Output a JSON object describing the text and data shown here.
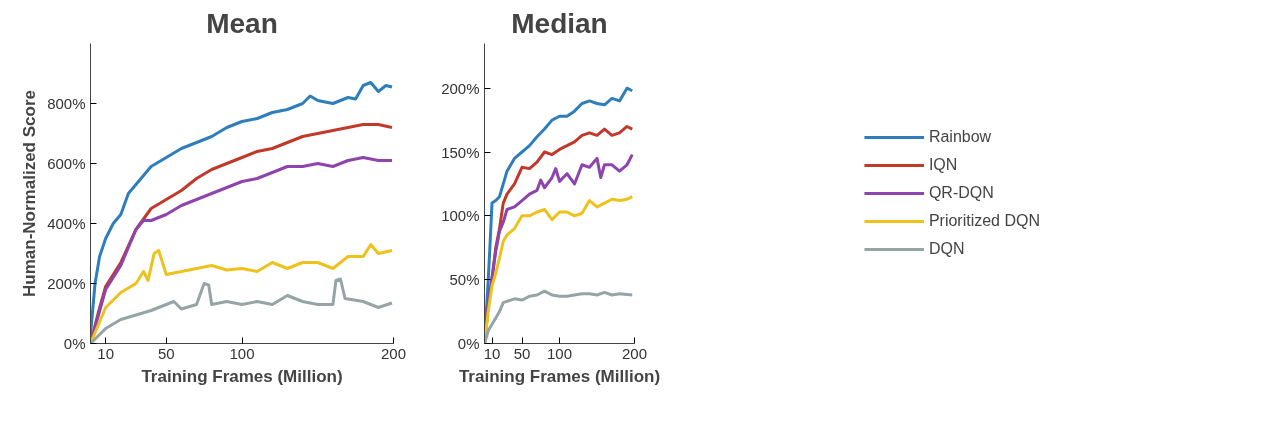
{
  "chart_data": [
    {
      "type": "line",
      "title": "Mean",
      "xlabel": "Training Frames (Million)",
      "ylabel": "Human-Normalized Score",
      "xlim": [
        0,
        200
      ],
      "xticks": [
        10,
        50,
        100,
        200
      ],
      "ylim": [
        0,
        1000
      ],
      "yticks": [
        {
          "value": 0,
          "label": "0%"
        },
        {
          "value": 200,
          "label": "200%"
        },
        {
          "value": 400,
          "label": "400%"
        },
        {
          "value": 600,
          "label": "600%"
        },
        {
          "value": 800,
          "label": "800%"
        }
      ],
      "grid": false,
      "legend": false,
      "series": [
        {
          "color": "#2f7ebc",
          "x": [
            0,
            3,
            6,
            10,
            15,
            20,
            25,
            30,
            40,
            50,
            60,
            70,
            80,
            90,
            100,
            110,
            120,
            130,
            140,
            145,
            150,
            160,
            170,
            175,
            180,
            185,
            190,
            195,
            199
          ],
          "values": [
            30,
            200,
            290,
            350,
            400,
            430,
            500,
            530,
            590,
            620,
            650,
            670,
            690,
            720,
            740,
            750,
            770,
            780,
            800,
            825,
            810,
            800,
            820,
            815,
            860,
            870,
            840,
            860,
            855
          ]
        },
        {
          "color": "#c0392b",
          "x": [
            0,
            5,
            10,
            20,
            30,
            40,
            50,
            60,
            70,
            80,
            90,
            100,
            110,
            120,
            130,
            140,
            150,
            160,
            170,
            180,
            190,
            199
          ],
          "values": [
            0,
            100,
            190,
            270,
            380,
            450,
            480,
            510,
            550,
            580,
            600,
            620,
            640,
            650,
            670,
            690,
            700,
            710,
            720,
            730,
            730,
            720
          ]
        },
        {
          "color": "#8e44ad",
          "x": [
            0,
            5,
            10,
            20,
            30,
            35,
            40,
            50,
            60,
            70,
            80,
            90,
            100,
            110,
            120,
            130,
            140,
            150,
            160,
            170,
            180,
            190,
            199
          ],
          "values": [
            0,
            90,
            180,
            260,
            380,
            410,
            410,
            430,
            460,
            480,
            500,
            520,
            540,
            550,
            570,
            590,
            590,
            600,
            590,
            610,
            620,
            610,
            610
          ]
        },
        {
          "color": "#eec21c",
          "x": [
            0,
            5,
            10,
            20,
            30,
            35,
            38,
            42,
            45,
            50,
            60,
            70,
            80,
            90,
            100,
            110,
            120,
            130,
            140,
            150,
            160,
            170,
            180,
            185,
            190,
            199
          ],
          "values": [
            0,
            60,
            120,
            170,
            200,
            240,
            210,
            300,
            310,
            230,
            240,
            250,
            260,
            245,
            250,
            240,
            270,
            250,
            270,
            270,
            250,
            290,
            290,
            330,
            300,
            310
          ]
        },
        {
          "color": "#95a5a6",
          "x": [
            0,
            10,
            20,
            30,
            40,
            50,
            55,
            60,
            70,
            75,
            78,
            80,
            90,
            100,
            110,
            120,
            130,
            140,
            150,
            160,
            162,
            165,
            168,
            180,
            190,
            199
          ],
          "values": [
            0,
            50,
            80,
            95,
            110,
            130,
            140,
            115,
            130,
            200,
            195,
            130,
            140,
            130,
            140,
            130,
            160,
            140,
            130,
            130,
            210,
            215,
            150,
            140,
            120,
            135
          ]
        }
      ]
    },
    {
      "type": "line",
      "title": "Median",
      "xlabel": "Training Frames (Million)",
      "xlim": [
        0,
        200
      ],
      "xticks": [
        10,
        50,
        100,
        200
      ],
      "ylim": [
        0,
        235
      ],
      "yticks": [
        {
          "value": 0,
          "label": "0%"
        },
        {
          "value": 50,
          "label": "50%"
        },
        {
          "value": 100,
          "label": "100%"
        },
        {
          "value": 150,
          "label": "150%"
        },
        {
          "value": 200,
          "label": "200%"
        }
      ],
      "grid": false,
      "legend": "right",
      "series": [
        {
          "name": "Rainbow",
          "color": "#2f7ebc",
          "x": [
            1,
            5,
            8,
            10,
            15,
            20,
            25,
            30,
            40,
            50,
            60,
            70,
            80,
            90,
            100,
            110,
            120,
            130,
            140,
            150,
            160,
            170,
            180,
            190,
            197
          ],
          "values": [
            10,
            50,
            85,
            110,
            112,
            115,
            125,
            135,
            145,
            150,
            155,
            162,
            168,
            175,
            178,
            178,
            182,
            188,
            190,
            188,
            187,
            192,
            190,
            200,
            198
          ]
        },
        {
          "name": "IQN",
          "color": "#c0392b",
          "x": [
            0,
            5,
            10,
            15,
            20,
            25,
            30,
            40,
            50,
            60,
            70,
            80,
            90,
            100,
            110,
            120,
            130,
            140,
            150,
            160,
            170,
            180,
            190,
            197
          ],
          "values": [
            0,
            30,
            50,
            75,
            90,
            110,
            117,
            125,
            138,
            137,
            142,
            150,
            148,
            152,
            155,
            158,
            163,
            165,
            163,
            168,
            163,
            165,
            170,
            168
          ]
        },
        {
          "name": "QR-DQN",
          "color": "#8e44ad",
          "x": [
            0,
            5,
            10,
            15,
            20,
            25,
            30,
            40,
            50,
            60,
            70,
            75,
            80,
            90,
            95,
            100,
            110,
            120,
            130,
            140,
            150,
            155,
            160,
            170,
            180,
            190,
            197
          ],
          "values": [
            0,
            30,
            52,
            72,
            88,
            95,
            105,
            107,
            112,
            117,
            120,
            128,
            122,
            130,
            137,
            127,
            133,
            125,
            140,
            138,
            145,
            130,
            140,
            140,
            135,
            140,
            148
          ]
        },
        {
          "name": "Prioritized DQN",
          "color": "#eec21c",
          "x": [
            0,
            5,
            10,
            15,
            20,
            25,
            30,
            40,
            50,
            60,
            70,
            80,
            90,
            100,
            110,
            120,
            130,
            140,
            150,
            160,
            170,
            180,
            190,
            197
          ],
          "values": [
            0,
            25,
            45,
            55,
            67,
            80,
            85,
            90,
            100,
            100,
            103,
            105,
            97,
            103,
            103,
            100,
            102,
            112,
            107,
            110,
            113,
            112,
            113,
            115
          ]
        },
        {
          "name": "DQN",
          "color": "#95a5a6",
          "x": [
            0,
            5,
            10,
            15,
            20,
            25,
            30,
            40,
            50,
            60,
            70,
            80,
            90,
            100,
            110,
            120,
            130,
            140,
            150,
            160,
            170,
            180,
            197
          ],
          "values": [
            0,
            10,
            15,
            20,
            25,
            32,
            33,
            35,
            34,
            37,
            38,
            41,
            38,
            37,
            37,
            38,
            39,
            39,
            38,
            40,
            38,
            39,
            38
          ]
        }
      ]
    }
  ]
}
